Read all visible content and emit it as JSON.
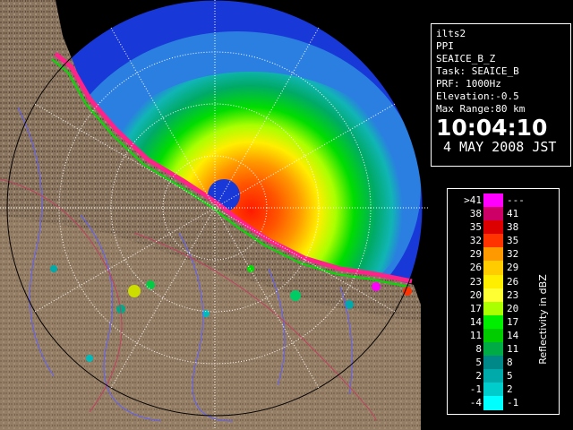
{
  "info_panel": {
    "site": "ilts2",
    "mode": "PPI",
    "product": "SEAICE_B_Z",
    "task": "Task: SEAICE_B",
    "prf": "PRF: 1000Hz",
    "elevation": "Elevation:-0.5",
    "max_range": "Max Range:80 km",
    "time": "10:04:10",
    "date": "4 MAY 2008 JST"
  },
  "scale": {
    "title": "Reflectivity in dBZ",
    "rows": [
      {
        "left": ">41",
        "right": "---",
        "color": "#ff00ff"
      },
      {
        "left": "38",
        "right": "41",
        "color": "#cc0066"
      },
      {
        "left": "35",
        "right": "38",
        "color": "#dd0000"
      },
      {
        "left": "32",
        "right": "35",
        "color": "#ff3300"
      },
      {
        "left": "29",
        "right": "32",
        "color": "#ff9900"
      },
      {
        "left": "26",
        "right": "29",
        "color": "#ffcc00"
      },
      {
        "left": "23",
        "right": "26",
        "color": "#ffee00"
      },
      {
        "left": "20",
        "right": "23",
        "color": "#ffff33"
      },
      {
        "left": "17",
        "right": "20",
        "color": "#aaff00"
      },
      {
        "left": "14",
        "right": "17",
        "color": "#00ee00"
      },
      {
        "left": "11",
        "right": "14",
        "color": "#00cc00"
      },
      {
        "left": "8",
        "right": "11",
        "color": "#00aa44"
      },
      {
        "left": "5",
        "right": "8",
        "color": "#008888"
      },
      {
        "left": "2",
        "right": "5",
        "color": "#00aaaa"
      },
      {
        "left": "-1",
        "right": "2",
        "color": "#00cccc"
      },
      {
        "left": "-4",
        "right": "-1",
        "color": "#00ffff"
      }
    ]
  },
  "colors": {
    "land": "#8a7560",
    "sea_far": "#1838d8",
    "sea_near": "#2a7fe0",
    "grid": "#ffffff",
    "rivers": "#6060ff",
    "borders": "#c04060"
  }
}
